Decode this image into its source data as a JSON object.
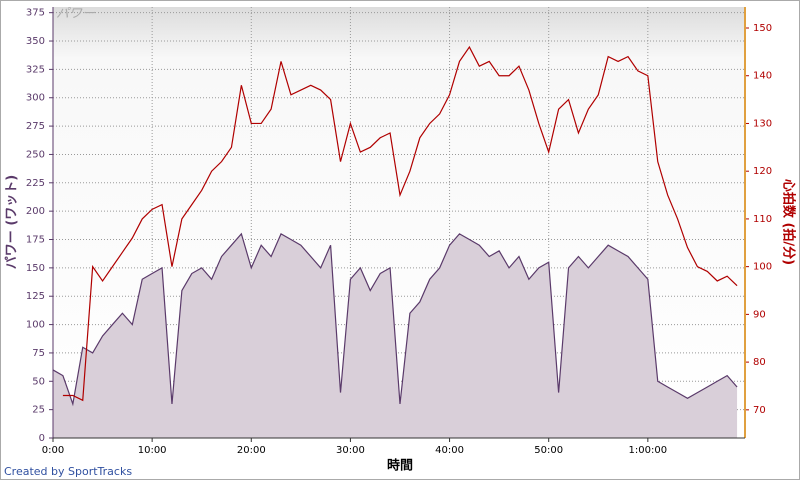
{
  "chart_data": {
    "type": "line",
    "title": "パワー",
    "x_label": "時間",
    "y_label": "パワー (ワット)",
    "y2_label": "心拍数 (拍/分)",
    "footer": "Created by SportTracks",
    "x": [
      0,
      1,
      2,
      3,
      4,
      5,
      6,
      7,
      8,
      9,
      10,
      11,
      12,
      13,
      14,
      15,
      16,
      17,
      18,
      19,
      20,
      21,
      22,
      23,
      24,
      25,
      26,
      27,
      28,
      29,
      30,
      31,
      32,
      33,
      34,
      35,
      36,
      37,
      38,
      39,
      40,
      41,
      42,
      43,
      44,
      45,
      46,
      47,
      48,
      49,
      50,
      51,
      52,
      53,
      54,
      55,
      56,
      57,
      58,
      59,
      60,
      61,
      62,
      63,
      64,
      65,
      66,
      67,
      68,
      69
    ],
    "series": [
      {
        "name": "パワー",
        "color": "#5a3a6a",
        "fill": "#d9cfd9",
        "values": [
          60,
          55,
          30,
          80,
          75,
          90,
          100,
          110,
          100,
          140,
          145,
          150,
          30,
          130,
          145,
          150,
          140,
          160,
          170,
          180,
          150,
          170,
          160,
          180,
          175,
          170,
          160,
          150,
          170,
          40,
          140,
          150,
          130,
          145,
          150,
          30,
          110,
          120,
          140,
          150,
          170,
          180,
          175,
          170,
          160,
          165,
          150,
          160,
          140,
          150,
          155,
          40,
          150,
          160,
          150,
          160,
          170,
          165,
          160,
          150,
          140,
          50,
          45,
          40,
          35,
          40,
          45,
          50,
          55,
          45
        ]
      },
      {
        "name": "心拍数",
        "color": "#b00000",
        "axis": "y2",
        "values": [
          null,
          73,
          73,
          72,
          100,
          97,
          100,
          103,
          106,
          110,
          112,
          113,
          100,
          110,
          113,
          116,
          120,
          122,
          125,
          138,
          130,
          130,
          133,
          143,
          136,
          137,
          138,
          137,
          135,
          122,
          130,
          124,
          125,
          127,
          128,
          115,
          120,
          127,
          130,
          132,
          136,
          143,
          146,
          142,
          143,
          140,
          140,
          142,
          137,
          130,
          124,
          133,
          135,
          128,
          133,
          136,
          144,
          143,
          144,
          141,
          140,
          122,
          115,
          110,
          104,
          100,
          99,
          97,
          98,
          96
        ]
      }
    ],
    "xlim": [
      0,
      69.8
    ],
    "xticks": [
      {
        "value": 0,
        "label": "0:00"
      },
      {
        "value": 10,
        "label": "10:00"
      },
      {
        "value": 20,
        "label": "20:00"
      },
      {
        "value": 30,
        "label": "30:00"
      },
      {
        "value": 40,
        "label": "40:00"
      },
      {
        "value": 50,
        "label": "50:00"
      },
      {
        "value": 60,
        "label": "1:00:00"
      }
    ],
    "ylim": [
      0,
      380
    ],
    "yticks": [
      0,
      25,
      50,
      75,
      100,
      125,
      150,
      175,
      200,
      225,
      250,
      275,
      300,
      325,
      350,
      375
    ],
    "y2lim": [
      64.1,
      154.4
    ],
    "y2ticks": [
      70,
      80,
      90,
      100,
      110,
      120,
      130,
      140,
      150
    ],
    "grid": true
  }
}
